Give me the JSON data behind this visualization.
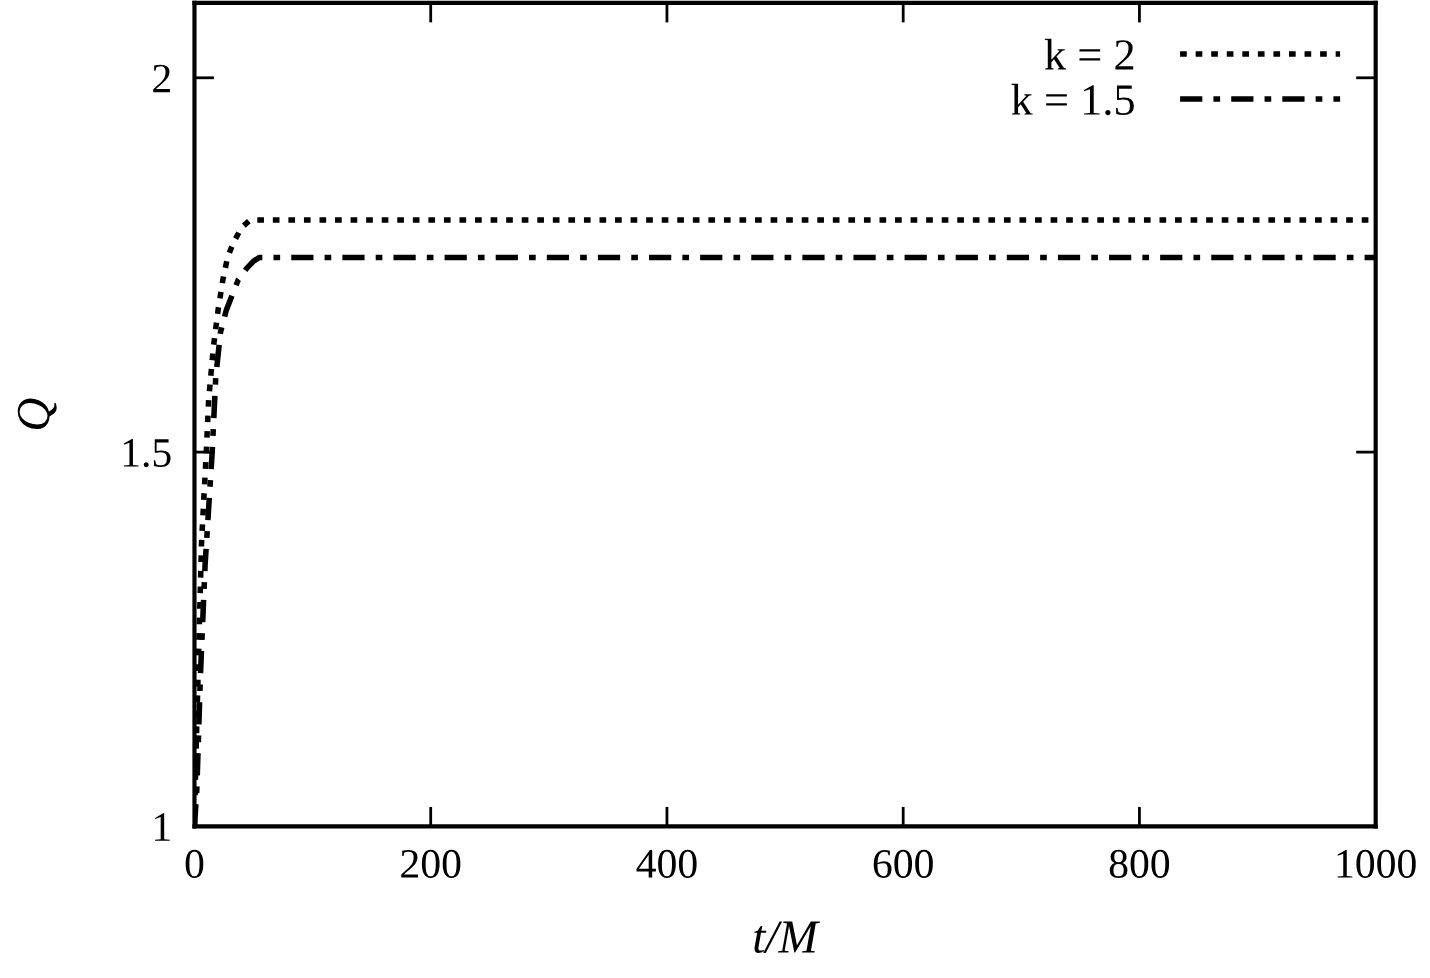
{
  "chart_data": {
    "type": "line",
    "xlabel": "t/M",
    "ylabel": "Q",
    "xlim": [
      0,
      1000
    ],
    "xticks": [
      0,
      200,
      400,
      600,
      800,
      1000
    ],
    "ylim": [
      1,
      2.1
    ],
    "yticks": [
      1,
      1.5,
      2
    ],
    "grid": false,
    "legend": "top right",
    "series": [
      {
        "name": "k = 2",
        "color": "#000000",
        "line_style": "dotted",
        "x": [
          0,
          1,
          3,
          6,
          10,
          12,
          16,
          20,
          24,
          28,
          33,
          40,
          47,
          1000
        ],
        "values": [
          1.0,
          1.08,
          1.2,
          1.38,
          1.5,
          1.57,
          1.64,
          1.69,
          1.73,
          1.76,
          1.78,
          1.8,
          1.81,
          1.81
        ]
      },
      {
        "name": "k = 1.5",
        "color": "#000000",
        "line_style": "dashdot",
        "x": [
          0,
          2,
          5,
          9,
          15,
          18,
          22,
          27,
          32,
          37,
          44,
          50,
          55,
          1000
        ],
        "values": [
          1.0,
          1.05,
          1.2,
          1.35,
          1.5,
          1.6,
          1.66,
          1.69,
          1.71,
          1.73,
          1.745,
          1.755,
          1.76,
          1.76
        ]
      }
    ]
  }
}
